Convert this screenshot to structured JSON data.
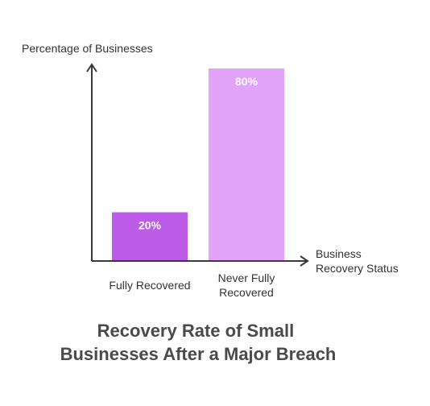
{
  "chart_data": {
    "type": "bar",
    "categories": [
      "Fully Recovered",
      "Never Fully Recovered"
    ],
    "category_lines": [
      [
        "Fully Recovered"
      ],
      [
        "Never Fully",
        "Recovered"
      ]
    ],
    "values": [
      20,
      80
    ],
    "data_labels": [
      "20%",
      "80%"
    ],
    "bar_colors": [
      "#bc5be6",
      "#e2a3fb"
    ],
    "ylabel": "Percentage of Businesses",
    "xlabel_lines": [
      "Business",
      "Recovery Status"
    ],
    "title_lines": [
      "Recovery Rate of Small",
      "Businesses After a Major Breach"
    ],
    "ylim": [
      0,
      80
    ],
    "grid": false,
    "legend": "none"
  }
}
